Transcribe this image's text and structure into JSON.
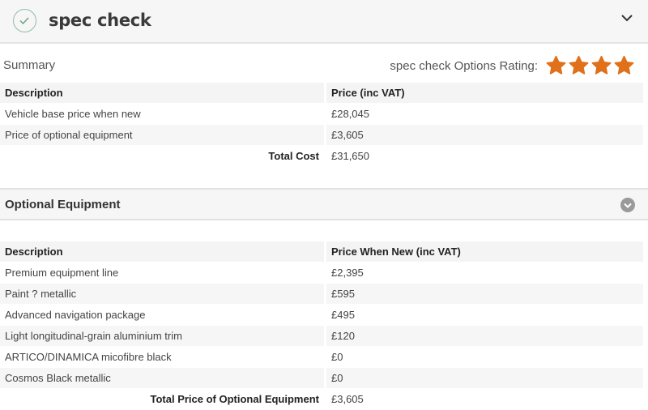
{
  "header": {
    "title": "spec check",
    "icon": "check-circle-icon",
    "toggle_icon": "chevron-down-icon"
  },
  "summary": {
    "label": "Summary",
    "rating_label": "spec check Options Rating:",
    "rating": 4,
    "rating_max": 4,
    "star_color": "#e0701a",
    "columns": [
      "Description",
      "Price (inc VAT)"
    ],
    "rows": [
      [
        "Vehicle base price when new",
        "£28,045"
      ],
      [
        "Price of optional equipment",
        "£3,605"
      ]
    ],
    "total_label": "Total Cost",
    "total_value": "£31,650"
  },
  "optional": {
    "title": "Optional Equipment",
    "columns": [
      "Description",
      "Price When New (inc VAT)"
    ],
    "rows": [
      [
        "Premium equipment line",
        "£2,395"
      ],
      [
        "Paint ? metallic",
        "£595"
      ],
      [
        "Advanced navigation package",
        "£495"
      ],
      [
        "Light longitudinal-grain aluminium trim",
        "£120"
      ],
      [
        "ARTICO/DINAMICA micofibre black",
        "£0"
      ],
      [
        "Cosmos Black metallic",
        "£0"
      ]
    ],
    "total_label": "Total Price of Optional Equipment",
    "total_value": "£3,605"
  }
}
